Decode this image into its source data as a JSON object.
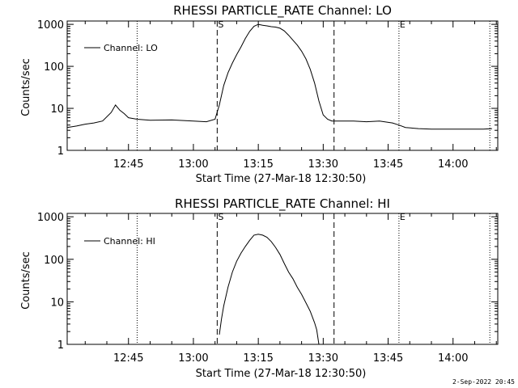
{
  "chart_data": [
    {
      "type": "line",
      "title": "RHESSI PARTICLE_RATE Channel: LO",
      "xlabel": "Start Time (27-Mar-18 12:30:50)",
      "ylabel": "Counts/sec",
      "yscale": "log",
      "ylim": [
        1,
        1200
      ],
      "xlim": [
        "12:30:50",
        "14:10:20"
      ],
      "x_tick_labels": [
        "12:45",
        "13:00",
        "13:15",
        "13:30",
        "13:45",
        "14:00"
      ],
      "y_tick_labels": [
        "1",
        "10",
        "100",
        "1000"
      ],
      "legend": {
        "position": "top-left",
        "entries": [
          "Channel: LO"
        ]
      },
      "markers": [
        {
          "time": "13:05:30",
          "style": "dashed",
          "label": "S"
        },
        {
          "time": "13:32:30",
          "style": "dashed",
          "label": ""
        },
        {
          "time": "12:47:00",
          "style": "dotted",
          "label": ""
        },
        {
          "time": "13:47:30",
          "style": "dotted",
          "label": "E"
        },
        {
          "time": "14:08:30",
          "style": "dotted",
          "label": ""
        }
      ],
      "series": [
        {
          "name": "Channel: LO",
          "x": [
            "12:30:50",
            "12:33:00",
            "12:35:00",
            "12:37:00",
            "12:39:00",
            "12:41:00",
            "12:42:00",
            "12:43:00",
            "12:44:00",
            "12:45:00",
            "12:47:00",
            "12:50:00",
            "12:55:00",
            "13:00:00",
            "13:03:00",
            "13:05:00",
            "13:06:00",
            "13:07:00",
            "13:08:00",
            "13:09:00",
            "13:10:00",
            "13:11:00",
            "13:12:00",
            "13:13:00",
            "13:14:00",
            "13:15:00",
            "13:16:00",
            "13:17:00",
            "13:18:00",
            "13:19:00",
            "13:20:00",
            "13:21:00",
            "13:22:00",
            "13:23:00",
            "13:24:00",
            "13:25:00",
            "13:26:00",
            "13:27:00",
            "13:28:00",
            "13:29:00",
            "13:30:00",
            "13:31:00",
            "13:32:00",
            "13:34:00",
            "13:37:00",
            "13:40:00",
            "13:43:00",
            "13:46:00",
            "13:47:30",
            "13:49:00",
            "13:52:00",
            "13:55:00",
            "13:58:00",
            "14:01:00",
            "14:04:00",
            "14:07:00",
            "14:09:00"
          ],
          "y": [
            3.5,
            3.8,
            4.2,
            4.5,
            5,
            8,
            12,
            9,
            7.5,
            6,
            5.5,
            5.2,
            5.3,
            5.0,
            4.8,
            5.5,
            12,
            35,
            70,
            120,
            190,
            290,
            460,
            680,
            900,
            1000,
            950,
            920,
            880,
            860,
            810,
            700,
            550,
            420,
            320,
            230,
            150,
            85,
            40,
            15,
            7,
            5.5,
            5.0,
            5.0,
            5.0,
            4.8,
            5.0,
            4.5,
            4.0,
            3.5,
            3.3,
            3.2,
            3.2,
            3.2,
            3.2,
            3.2,
            3.3
          ]
        }
      ]
    },
    {
      "type": "line",
      "title": "RHESSI PARTICLE_RATE Channel: HI",
      "xlabel": "Start Time (27-Mar-18 12:30:50)",
      "ylabel": "Counts/sec",
      "yscale": "log",
      "ylim": [
        1,
        1200
      ],
      "xlim": [
        "12:30:50",
        "14:10:20"
      ],
      "x_tick_labels": [
        "12:45",
        "13:00",
        "13:15",
        "13:30",
        "13:45",
        "14:00"
      ],
      "y_tick_labels": [
        "1",
        "10",
        "100",
        "1000"
      ],
      "legend": {
        "position": "top-left",
        "entries": [
          "Channel: HI"
        ]
      },
      "markers": [
        {
          "time": "13:05:30",
          "style": "dashed",
          "label": "S"
        },
        {
          "time": "13:32:30",
          "style": "dashed",
          "label": ""
        },
        {
          "time": "12:47:00",
          "style": "dotted",
          "label": ""
        },
        {
          "time": "13:47:30",
          "style": "dotted",
          "label": "E"
        },
        {
          "time": "14:08:30",
          "style": "dotted",
          "label": ""
        }
      ],
      "series": [
        {
          "name": "Channel: HI",
          "x": [
            "13:06:00",
            "13:06:30",
            "13:07:00",
            "13:08:00",
            "13:09:00",
            "13:10:00",
            "13:11:00",
            "13:12:00",
            "13:13:00",
            "13:14:00",
            "13:15:00",
            "13:16:00",
            "13:17:00",
            "13:18:00",
            "13:19:00",
            "13:20:00",
            "13:21:00",
            "13:22:00",
            "13:23:00",
            "13:24:00",
            "13:25:00",
            "13:26:00",
            "13:27:00",
            "13:28:00",
            "13:28:30",
            "13:29:00"
          ],
          "y": [
            1.7,
            4,
            8,
            22,
            50,
            90,
            140,
            200,
            280,
            370,
            390,
            370,
            330,
            260,
            190,
            130,
            80,
            50,
            35,
            22,
            15,
            9.5,
            6,
            3.2,
            2.2,
            1.0
          ]
        }
      ]
    }
  ],
  "footer": {
    "timestamp": "2-Sep-2022 20:45"
  }
}
